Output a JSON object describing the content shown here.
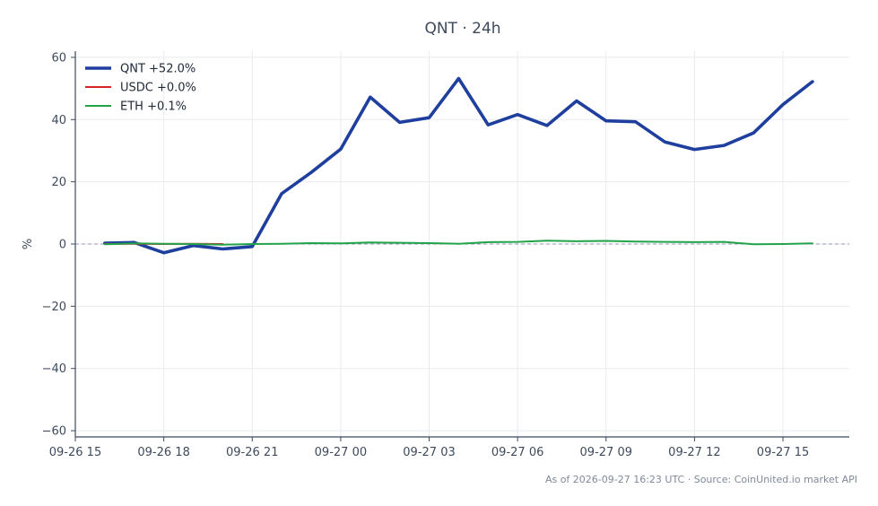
{
  "chart_data": {
    "type": "line",
    "title": "QNT · 24h",
    "xlabel": "",
    "ylabel": "%",
    "ylim": [
      -62,
      62
    ],
    "yticks": [
      -60,
      -40,
      -20,
      0,
      20,
      40,
      60
    ],
    "ytick_labels": [
      "−60",
      "−40",
      "−20",
      "0",
      "20",
      "40",
      "60"
    ],
    "xlim": [
      "2026-09-26 15:00",
      "2026-09-27 17:15"
    ],
    "xticks": [
      "2026-09-26 15:00",
      "2026-09-26 18:00",
      "2026-09-26 21:00",
      "2026-09-27 00:00",
      "2026-09-27 03:00",
      "2026-09-27 06:00",
      "2026-09-27 09:00",
      "2026-09-27 12:00",
      "2026-09-27 15:00"
    ],
    "xtick_labels": [
      "09-26 15",
      "09-26 18",
      "09-26 21",
      "09-27 00",
      "09-27 03",
      "09-27 06",
      "09-27 09",
      "09-27 12",
      "09-27 15"
    ],
    "grid": true,
    "zero_line": true,
    "legend_position": "top-left",
    "series": [
      {
        "name": "QNT +52.0%",
        "color": "#1f3f9e",
        "x": [
          "2026-09-26 16:00",
          "2026-09-26 17:00",
          "2026-09-26 18:00",
          "2026-09-26 19:00",
          "2026-09-26 20:00",
          "2026-09-26 21:00",
          "2026-09-26 22:00",
          "2026-09-26 23:00",
          "2026-09-27 00:00",
          "2026-09-27 01:00",
          "2026-09-27 02:00",
          "2026-09-27 03:00",
          "2026-09-27 04:00",
          "2026-09-27 05:00",
          "2026-09-27 06:00",
          "2026-09-27 07:00",
          "2026-09-27 08:00",
          "2026-09-27 09:00",
          "2026-09-27 10:00",
          "2026-09-27 11:00",
          "2026-09-27 12:00",
          "2026-09-27 13:00",
          "2026-09-27 14:00",
          "2026-09-27 15:00",
          "2026-09-27 16:00"
        ],
        "values": [
          0.3,
          0.5,
          -2.8,
          -0.5,
          -1.6,
          -0.8,
          16.2,
          23.0,
          30.5,
          47.2,
          39.1,
          40.6,
          53.2,
          38.3,
          41.6,
          38.1,
          46.0,
          39.6,
          39.3,
          32.8,
          30.4,
          31.7,
          35.7,
          44.8,
          52.2
        ]
      },
      {
        "name": "USDC +0.0%",
        "color": "#d62728",
        "x": [
          "2026-09-26 16:00",
          "2026-09-26 17:00",
          "2026-09-26 18:00",
          "2026-09-26 19:00",
          "2026-09-26 20:00"
        ],
        "values": [
          0.0,
          0.1,
          0.0,
          0.1,
          0.0
        ]
      },
      {
        "name": "ETH +0.1%",
        "color": "#22a34a",
        "x": [
          "2026-09-26 16:00",
          "2026-09-26 17:00",
          "2026-09-26 18:00",
          "2026-09-26 19:00",
          "2026-09-26 20:00",
          "2026-09-26 21:00",
          "2026-09-26 22:00",
          "2026-09-26 23:00",
          "2026-09-27 00:00",
          "2026-09-27 01:00",
          "2026-09-27 02:00",
          "2026-09-27 03:00",
          "2026-09-27 04:00",
          "2026-09-27 05:00",
          "2026-09-27 06:00",
          "2026-09-27 07:00",
          "2026-09-27 08:00",
          "2026-09-27 09:00",
          "2026-09-27 10:00",
          "2026-09-27 11:00",
          "2026-09-27 12:00",
          "2026-09-27 13:00",
          "2026-09-27 14:00",
          "2026-09-27 15:00",
          "2026-09-27 16:00"
        ],
        "values": [
          -0.1,
          0.2,
          0.1,
          0.0,
          -0.2,
          0.0,
          0.1,
          0.3,
          0.2,
          0.5,
          0.4,
          0.3,
          0.1,
          0.6,
          0.7,
          1.1,
          0.9,
          1.0,
          0.8,
          0.7,
          0.6,
          0.7,
          -0.1,
          0.0,
          0.2
        ]
      }
    ],
    "footer": "As of 2026-09-27 16:23 UTC · Source: CoinUnited.io market API"
  }
}
